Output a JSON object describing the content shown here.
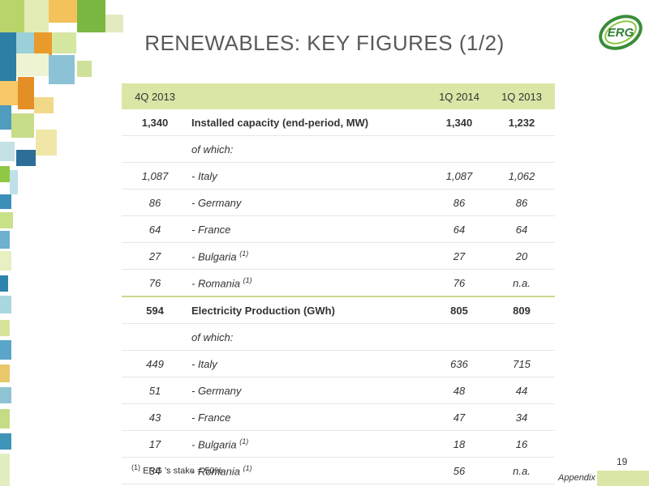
{
  "title": "RENEWABLES: KEY FIGURES (1/2)",
  "logo_text": "ERG",
  "colors": {
    "header_bg": "#d9e6a6",
    "separator": "#c9d98a",
    "logo_green": "#3a8c3a"
  },
  "table": {
    "headers": [
      "4Q 2013",
      "",
      "1Q 2014",
      "1Q 2013"
    ],
    "sections": [
      {
        "total": {
          "q4": "1,340",
          "label": "Installed capacity (end-period, MW)",
          "q1_2014": "1,340",
          "q1_2013": "1,232"
        },
        "of_which": "of which:",
        "rows": [
          {
            "q4": "1,087",
            "label": "- Italy",
            "note": "",
            "q1_2014": "1,087",
            "q1_2013": "1,062"
          },
          {
            "q4": "86",
            "label": "- Germany",
            "note": "",
            "q1_2014": "86",
            "q1_2013": "86"
          },
          {
            "q4": "64",
            "label": "- France",
            "note": "",
            "q1_2014": "64",
            "q1_2013": "64"
          },
          {
            "q4": "27",
            "label": "- Bulgaria",
            "note": "(1)",
            "q1_2014": "27",
            "q1_2013": "20"
          },
          {
            "q4": "76",
            "label": "- Romania",
            "note": "(1)",
            "q1_2014": "76",
            "q1_2013": "n.a."
          }
        ]
      },
      {
        "total": {
          "q4": "594",
          "label": "Electricity Production (GWh)",
          "q1_2014": "805",
          "q1_2013": "809"
        },
        "of_which": "of which:",
        "rows": [
          {
            "q4": "449",
            "label": "- Italy",
            "note": "",
            "q1_2014": "636",
            "q1_2013": "715"
          },
          {
            "q4": "51",
            "label": "- Germany",
            "note": "",
            "q1_2014": "48",
            "q1_2013": "44"
          },
          {
            "q4": "43",
            "label": "- France",
            "note": "",
            "q1_2014": "47",
            "q1_2013": "34"
          },
          {
            "q4": "17",
            "label": "- Bulgaria",
            "note": "(1)",
            "q1_2014": "18",
            "q1_2013": "16"
          },
          {
            "q4": "34",
            "label": "- Romania",
            "note": "(1)",
            "q1_2014": "56",
            "q1_2013": "n.a."
          }
        ]
      }
    ]
  },
  "footnote": {
    "marker": "(1)",
    "text": "ERG 's stake = 50%"
  },
  "page_number": "19",
  "appendix_label": "Appendix"
}
